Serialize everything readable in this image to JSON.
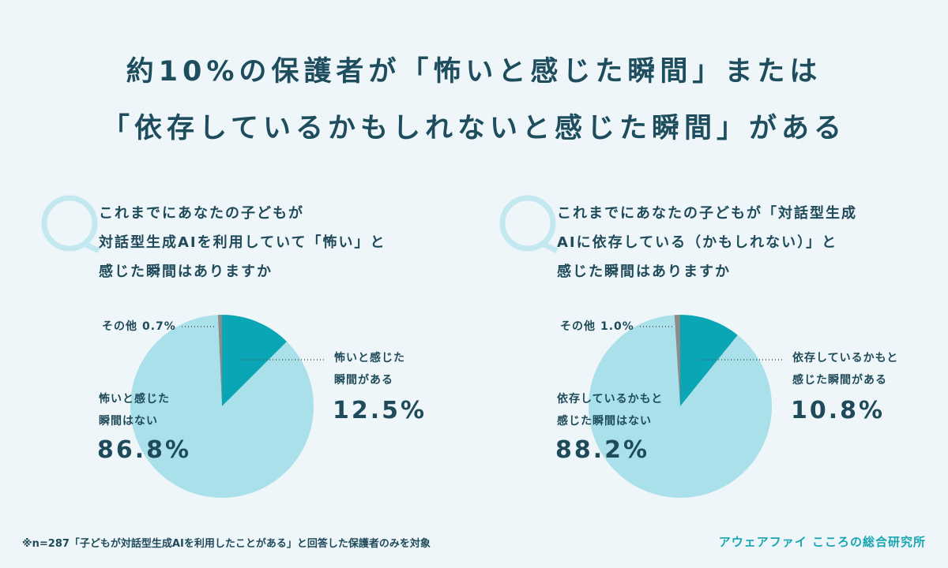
{
  "title": [
    "約10%の保護者が「怖いと感じた瞬間」または",
    "「依存しているかもしれないと感じた瞬間」がある"
  ],
  "chart_data": [
    {
      "type": "pie",
      "title": "これまでにあなたの子どもが\n対話型生成AIを利用していて「怖い」と\n感じた瞬間はありますか",
      "categories": [
        "怖いと感じた\n瞬間がある",
        "怖いと感じた\n瞬間はない",
        "その他"
      ],
      "values": [
        12.5,
        86.8,
        0.7
      ],
      "value_labels": [
        "12.5%",
        "86.8%",
        "0.7%"
      ],
      "colors": [
        "#0aa6b5",
        "#a9e0ea",
        "#8c8c8c"
      ]
    },
    {
      "type": "pie",
      "title": "これまでにあなたの子どもが「対話型生成\nAIに依存している（かもしれない）」と\n感じた瞬間はありますか",
      "categories": [
        "依存しているかもと\n感じた瞬間がある",
        "依存しているかもと\n感じた瞬間はない",
        "その他"
      ],
      "values": [
        10.8,
        88.2,
        1.0
      ],
      "value_labels": [
        "10.8%",
        "88.2%",
        "1.0%"
      ],
      "colors": [
        "#0aa6b5",
        "#a9e0ea",
        "#8c8c8c"
      ]
    }
  ],
  "footnote": "※n=287「子どもが対話型生成AIを利用したことがある」と回答した保護者のみを対象",
  "source": "アウェアファイ こころの総合研究所"
}
